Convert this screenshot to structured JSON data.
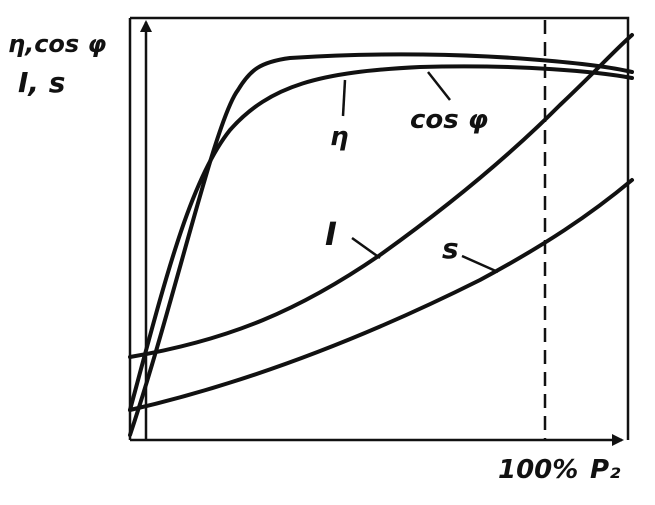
{
  "axes": {
    "y_label_top": "η,cos φ",
    "y_label_bottom": "I, s",
    "x_marker": "100%",
    "x_label": "P₂"
  },
  "curves": [
    {
      "label": "η"
    },
    {
      "label": "cos φ"
    },
    {
      "label": "I"
    },
    {
      "label": "s"
    }
  ]
}
